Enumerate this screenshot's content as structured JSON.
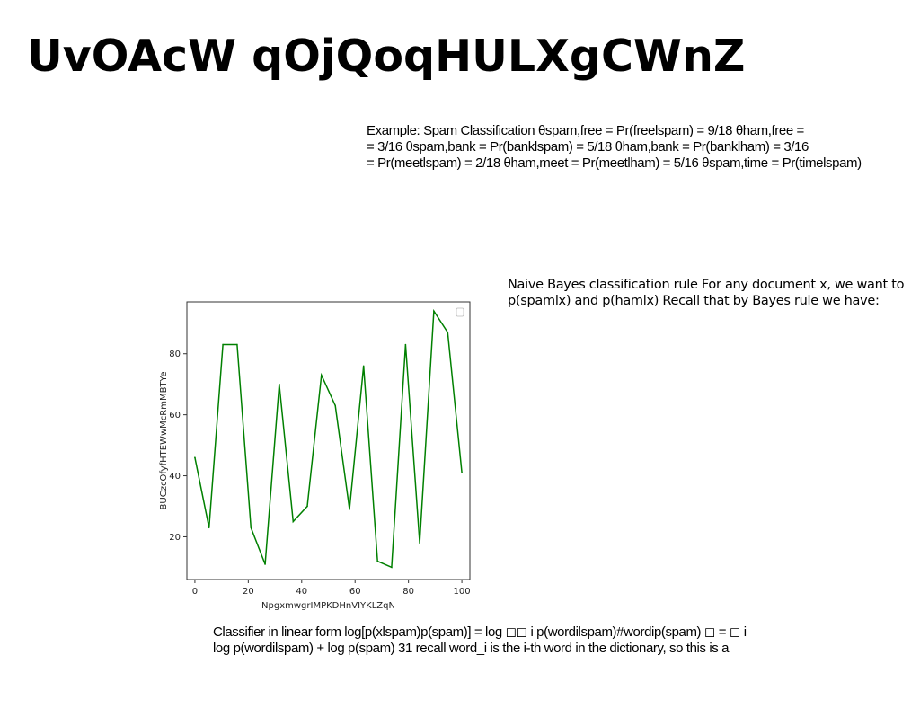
{
  "slide": {
    "title": "UvOAcW qOjQoqHULXgCWnZ"
  },
  "spam_example": {
    "lines": [
      "Example: Spam Classification θspam,free = Pr(freelspam) = 9/18 θham,free =",
      "= 3/16 θspam,bank = Pr(banklspam) = 5/18 θham,bank = Pr(banklham) = 3/16",
      "= Pr(meetlspam) = 2/18 θham,meet = Pr(meetlham) = 5/16 θspam,time = Pr(timelspam)"
    ]
  },
  "naive_bayes_rule": {
    "lines": [
      "Naive Bayes classification rule For any document x, we want to",
      "p(spamlx) and p(hamlx) Recall that by Bayes rule we have:"
    ]
  },
  "linear_form": {
    "lines": [
      "Classifier in linear form log[p(xlspam)p(spam)] = log ◻◻ i p(wordilspam)#wordip(spam) ◻ = ◻ i",
      "log p(wordilspam) + log p(spam) 31 recall word_i is the i-th word in the dictionary, so this is a"
    ]
  },
  "chart_data": {
    "type": "line",
    "title": "",
    "xlabel": "NpgxmwgrIMPKDHnVIYKLZqN",
    "ylabel": "BUCzcOfyfHTEWwMcRmMBTYe",
    "xlim": [
      -3,
      103
    ],
    "ylim": [
      6,
      97
    ],
    "x_ticks": [
      0,
      20,
      40,
      60,
      80,
      100
    ],
    "y_ticks": [
      20,
      40,
      60,
      80
    ],
    "grid": false,
    "legend": "top-right, empty",
    "series": [
      {
        "color": "#008000",
        "x": [
          0,
          5.3,
          10.5,
          15.8,
          21,
          26.3,
          31.6,
          36.8,
          42.1,
          47.4,
          52.6,
          57.9,
          63.2,
          68.4,
          73.7,
          78.9,
          84.2,
          89.5,
          94.7,
          100
        ],
        "y": [
          46,
          23,
          83,
          83,
          23,
          11,
          70,
          25,
          30,
          73,
          63,
          29,
          76,
          12,
          10,
          83,
          18,
          94,
          87,
          41
        ]
      }
    ]
  }
}
